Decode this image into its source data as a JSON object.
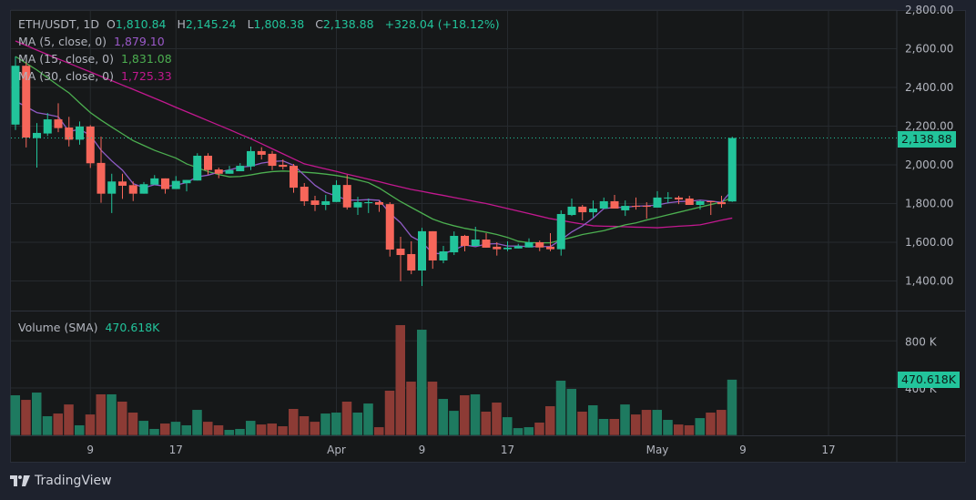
{
  "header": {
    "symbol": "ETH/USDT, 1D",
    "o_label": "O",
    "o_value": "1,810.84",
    "h_label": "H",
    "h_value": "2,145.24",
    "l_label": "L",
    "l_value": "1,808.38",
    "c_label": "C",
    "c_value": "2,138.88",
    "change": "+328.04 (+18.12%)"
  },
  "indicators": [
    {
      "label": "MA (5, close, 0)",
      "value": "1,879.10",
      "color": "#9b59c9"
    },
    {
      "label": "MA (15, close, 0)",
      "value": "1,831.08",
      "color": "#4caf50"
    },
    {
      "label": "MA (30, close, 0)",
      "value": "1,725.33",
      "color": "#c2188f"
    }
  ],
  "volume_legend": {
    "label": "Volume (SMA)",
    "value": "470.618K"
  },
  "last_price_tag": "2,138.88",
  "last_volume_tag": "470.618K",
  "brand": "TradingView",
  "colors": {
    "up": "#22c49b",
    "down": "#f7665a",
    "vol_up": "#1e7a60",
    "vol_down": "#8c3b35",
    "background": "#161819",
    "page": "#1e222d"
  },
  "chart_data": {
    "type": "candlestick",
    "price_axis": {
      "ticks": [
        "2,800.00",
        "2,600.00",
        "2,400.00",
        "2,200.00",
        "2,000.00",
        "1,800.00",
        "1,600.00",
        "1,400.00"
      ],
      "tick_values": [
        2800,
        2600,
        2400,
        2200,
        2000,
        1800,
        1600,
        1400
      ],
      "ylim": [
        1260,
        2800
      ]
    },
    "volume_axis": {
      "ticks": [
        "800 K",
        "400 K"
      ],
      "tick_values": [
        800,
        400
      ],
      "unit": "K"
    },
    "time_ticks": [
      {
        "label": "9",
        "date": "03-09"
      },
      {
        "label": "17",
        "date": "03-17"
      },
      {
        "label": "Apr",
        "date": "04-01"
      },
      {
        "label": "9",
        "date": "04-09"
      },
      {
        "label": "17",
        "date": "04-17"
      },
      {
        "label": "May",
        "date": "05-01"
      },
      {
        "label": "9",
        "date": "05-09"
      },
      {
        "label": "17",
        "date": "05-17"
      }
    ],
    "candle_fields": [
      "date",
      "open",
      "high",
      "low",
      "close",
      "volume_k"
    ],
    "candles": [
      [
        "03-02",
        2208,
        2560,
        2180,
        2512,
        338
      ],
      [
        "03-03",
        2512,
        2530,
        2090,
        2141,
        299
      ],
      [
        "03-04",
        2138,
        2216,
        1986,
        2165,
        361
      ],
      [
        "03-05",
        2162,
        2268,
        2149,
        2235,
        160
      ],
      [
        "03-06",
        2235,
        2318,
        2169,
        2190,
        183
      ],
      [
        "03-07",
        2193,
        2248,
        2095,
        2130,
        260
      ],
      [
        "03-08",
        2130,
        2224,
        2104,
        2198,
        83
      ],
      [
        "03-09",
        2198,
        2205,
        1984,
        2008,
        175
      ],
      [
        "03-10",
        2010,
        2146,
        1804,
        1851,
        346
      ],
      [
        "03-11",
        1851,
        1954,
        1751,
        1914,
        346
      ],
      [
        "03-12",
        1914,
        1954,
        1824,
        1892,
        284
      ],
      [
        "03-13",
        1895,
        1914,
        1813,
        1851,
        191
      ],
      [
        "03-14",
        1851,
        1911,
        1851,
        1900,
        121
      ],
      [
        "03-15",
        1898,
        1947,
        1898,
        1930,
        52
      ],
      [
        "03-16",
        1930,
        1930,
        1851,
        1875,
        98
      ],
      [
        "03-17",
        1875,
        1942,
        1875,
        1917,
        113
      ],
      [
        "03-18",
        1905,
        1922,
        1863,
        1922,
        83
      ],
      [
        "03-19",
        1919,
        2060,
        1919,
        2047,
        214
      ],
      [
        "03-20",
        2047,
        2060,
        1950,
        1973,
        113
      ],
      [
        "03-21",
        1976,
        1986,
        1931,
        1954,
        83
      ],
      [
        "03-22",
        1954,
        1995,
        1954,
        1973,
        44
      ],
      [
        "03-23",
        1967,
        2009,
        1967,
        1995,
        52
      ],
      [
        "03-24",
        1992,
        2095,
        1973,
        2071,
        121
      ],
      [
        "03-25",
        2071,
        2091,
        2028,
        2052,
        90
      ],
      [
        "03-26",
        2057,
        2072,
        1973,
        1995,
        98
      ],
      [
        "03-27",
        2000,
        2028,
        1976,
        1990,
        75
      ],
      [
        "03-28",
        1995,
        2005,
        1856,
        1882,
        222
      ],
      [
        "03-29",
        1887,
        1906,
        1788,
        1812,
        160
      ],
      [
        "03-30",
        1816,
        1840,
        1761,
        1793,
        113
      ],
      [
        "03-31",
        1793,
        1845,
        1766,
        1812,
        183
      ],
      [
        "04-01",
        1808,
        1920,
        1808,
        1896,
        191
      ],
      [
        "04-02",
        1896,
        1948,
        1769,
        1780,
        284
      ],
      [
        "04-03",
        1780,
        1835,
        1741,
        1807,
        191
      ],
      [
        "04-04",
        1805,
        1826,
        1751,
        1807,
        268
      ],
      [
        "04-05",
        1807,
        1816,
        1757,
        1794,
        67
      ],
      [
        "04-06",
        1797,
        1807,
        1526,
        1562,
        377
      ],
      [
        "04-07",
        1567,
        1628,
        1399,
        1534,
        934
      ],
      [
        "04-08",
        1539,
        1605,
        1435,
        1454,
        454
      ],
      [
        "04-09",
        1454,
        1675,
        1374,
        1657,
        895
      ],
      [
        "04-10",
        1657,
        1657,
        1463,
        1506,
        454
      ],
      [
        "04-11",
        1506,
        1581,
        1492,
        1553,
        307
      ],
      [
        "04-12",
        1548,
        1656,
        1534,
        1633,
        206
      ],
      [
        "04-13",
        1633,
        1638,
        1553,
        1581,
        338
      ],
      [
        "04-14",
        1581,
        1680,
        1581,
        1614,
        346
      ],
      [
        "04-15",
        1614,
        1647,
        1572,
        1572,
        199
      ],
      [
        "04-16",
        1577,
        1600,
        1531,
        1564,
        276
      ],
      [
        "04-17",
        1564,
        1605,
        1554,
        1572,
        152
      ],
      [
        "04-18",
        1568,
        1592,
        1568,
        1580,
        59
      ],
      [
        "04-19",
        1573,
        1620,
        1573,
        1600,
        67
      ],
      [
        "04-20",
        1600,
        1609,
        1554,
        1573,
        106
      ],
      [
        "04-21",
        1577,
        1647,
        1554,
        1564,
        245
      ],
      [
        "04-22",
        1564,
        1765,
        1531,
        1746,
        462
      ],
      [
        "04-23",
        1741,
        1826,
        1736,
        1784,
        392
      ],
      [
        "04-24",
        1784,
        1793,
        1713,
        1755,
        199
      ],
      [
        "04-25",
        1755,
        1816,
        1727,
        1774,
        253
      ],
      [
        "04-26",
        1774,
        1831,
        1774,
        1812,
        137
      ],
      [
        "04-27",
        1812,
        1845,
        1774,
        1774,
        137
      ],
      [
        "04-28",
        1765,
        1816,
        1736,
        1788,
        260
      ],
      [
        "04-29",
        1788,
        1831,
        1769,
        1784,
        175
      ],
      [
        "04-30",
        1788,
        1807,
        1722,
        1784,
        214
      ],
      [
        "05-01",
        1779,
        1864,
        1779,
        1831,
        214
      ],
      [
        "05-02",
        1828,
        1859,
        1802,
        1831,
        129
      ],
      [
        "05-03",
        1831,
        1840,
        1797,
        1821,
        90
      ],
      [
        "05-04",
        1826,
        1840,
        1793,
        1793,
        83
      ],
      [
        "05-05",
        1793,
        1816,
        1769,
        1812,
        144
      ],
      [
        "05-06",
        1812,
        1812,
        1741,
        1807,
        191
      ],
      [
        "05-07",
        1807,
        1840,
        1779,
        1797,
        214
      ],
      [
        "05-08",
        1810.84,
        2145.24,
        1808.38,
        2138.88,
        470.618
      ]
    ],
    "ma5_first_values": [
      2330,
      2300,
      2270,
      2260
    ],
    "ma15": [
      2560,
      2525,
      2490,
      2450,
      2410,
      2372,
      2320,
      2270,
      2231,
      2195,
      2160,
      2125,
      2100,
      2075,
      2055,
      2035,
      2005,
      1985,
      1965,
      1950,
      1938,
      1940,
      1948,
      1958,
      1965,
      1968,
      1966,
      1962,
      1958,
      1952,
      1945,
      1935,
      1922,
      1908,
      1880,
      1845,
      1810,
      1780,
      1750,
      1720,
      1700,
      1685,
      1672,
      1662,
      1652,
      1640,
      1625,
      1605,
      1598,
      1597,
      1597,
      1612,
      1625,
      1640,
      1650,
      1660,
      1675,
      1690,
      1700,
      1715,
      1728,
      1742,
      1755,
      1768,
      1782,
      1795,
      1808,
      1831
    ],
    "ma30": [
      2640,
      2617,
      2593,
      2570,
      2547,
      2525,
      2502,
      2480,
      2457,
      2435,
      2412,
      2390,
      2367,
      2344,
      2321,
      2297,
      2274,
      2251,
      2228,
      2205,
      2182,
      2158,
      2135,
      2109,
      2083,
      2057,
      2031,
      2005,
      1992,
      1979,
      1966,
      1952,
      1939,
      1926,
      1913,
      1899,
      1886,
      1873,
      1863,
      1852,
      1842,
      1831,
      1821,
      1810,
      1800,
      1787,
      1774,
      1761,
      1748,
      1735,
      1722,
      1713,
      1703,
      1694,
      1685,
      1683,
      1682,
      1680,
      1678,
      1677,
      1675,
      1679,
      1683,
      1686,
      1690,
      1702,
      1714,
      1725
    ]
  }
}
